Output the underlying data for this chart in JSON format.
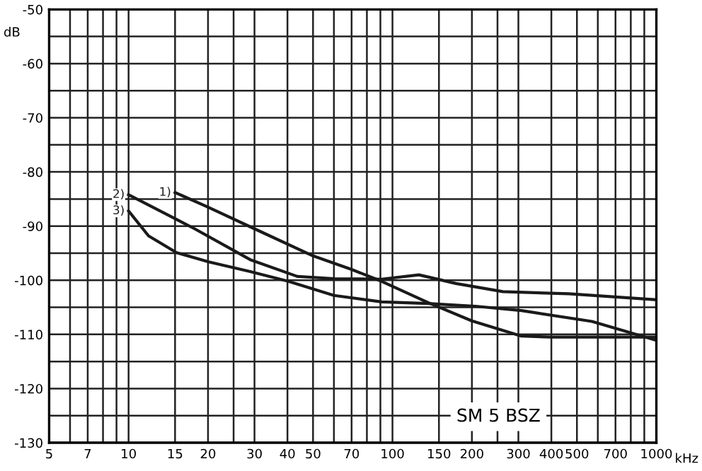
{
  "chart_data": {
    "type": "line",
    "xlabel": "kHz",
    "ylabel": "dB",
    "log": "x",
    "grid": true,
    "legend": false,
    "marker": "none",
    "line_style": "solid",
    "annotations": [
      "SM 5 BSZ"
    ],
    "xlim": [
      5,
      1000
    ],
    "ylim": [
      -130,
      -50
    ],
    "xticks": [
      5,
      {
        "value": 6,
        "label": null
      },
      7,
      {
        "value": 8,
        "label": null
      },
      {
        "value": 9,
        "label": null
      },
      10,
      15,
      20,
      {
        "value": 25,
        "label": null
      },
      30,
      40,
      50,
      {
        "value": 60,
        "label": null
      },
      70,
      {
        "value": 80,
        "label": null
      },
      {
        "value": 90,
        "label": null
      },
      100,
      150,
      200,
      {
        "value": 250,
        "label": null
      },
      300,
      400,
      500,
      {
        "value": 600,
        "label": null
      },
      700,
      {
        "value": 800,
        "label": null
      },
      {
        "value": 900,
        "label": null
      },
      1000
    ],
    "yticks": [
      -130,
      {
        "value": -125,
        "label": null
      },
      -120,
      {
        "value": -115,
        "label": null
      },
      -110,
      {
        "value": -105,
        "label": null
      },
      -100,
      {
        "value": -95,
        "label": null
      },
      -90,
      {
        "value": -85,
        "label": null
      },
      -80,
      {
        "value": -75,
        "label": null
      },
      -70,
      {
        "value": -65,
        "label": null
      },
      -60,
      {
        "value": -55,
        "label": null
      },
      -50
    ],
    "series": [
      {
        "name": "1)",
        "color": "#1a1a1a",
        "x": [
          15,
          20,
          30,
          50,
          70,
          91,
          136,
          200,
          308,
          400,
          700,
          1000
        ],
        "values": [
          -83.8,
          -86.5,
          -90.5,
          -95.5,
          -98,
          -100.2,
          -104.1,
          -107.5,
          -110.3,
          -110.5,
          -110.5,
          -110.5
        ]
      },
      {
        "name": "2)",
        "color": "#1a1a1a",
        "x": [
          10,
          17.8,
          28.9,
          43.6,
          60,
          91,
          126,
          174,
          262,
          466,
          1000
        ],
        "values": [
          -84.2,
          -90.5,
          -96.2,
          -99.3,
          -99.7,
          -99.8,
          -99,
          -100.6,
          -102.1,
          -102.5,
          -103.6
        ]
      },
      {
        "name": "3)",
        "color": "#1a1a1a",
        "x": [
          10,
          11.9,
          15.2,
          20.1,
          28.9,
          40.3,
          60,
          91,
          136,
          206,
          308,
          570,
          1000
        ],
        "values": [
          -87.2,
          -91.8,
          -94.9,
          -96.6,
          -98.4,
          -100.2,
          -102.8,
          -104,
          -104.3,
          -104.8,
          -105.6,
          -107.6,
          -111.1
        ]
      }
    ]
  }
}
